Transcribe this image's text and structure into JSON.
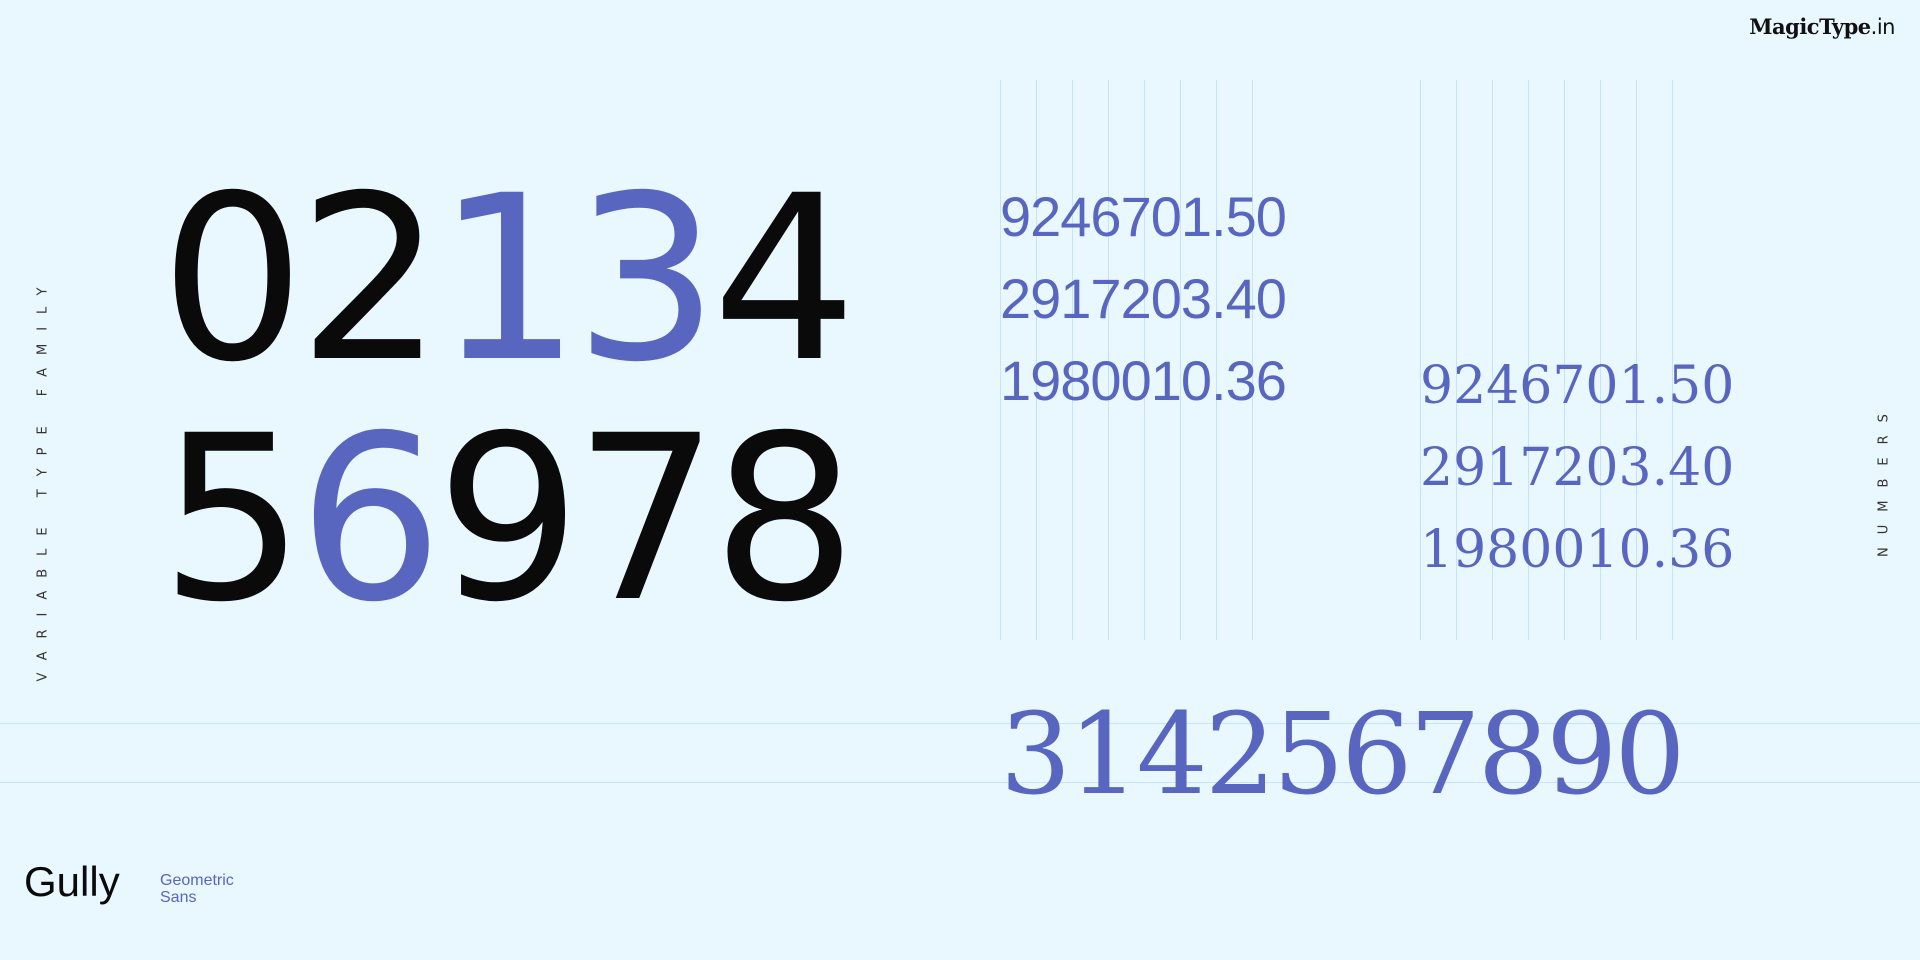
{
  "logo": {
    "main": "MagicType",
    "suffix": ".in"
  },
  "side_left": "VARIABLE TYPE FAMILY",
  "side_right": "NUMBERS",
  "big_digits": {
    "row1": [
      "0",
      "2",
      "1",
      "3",
      "4"
    ],
    "row2": [
      "5",
      "6",
      "9",
      "7",
      "8"
    ]
  },
  "tabular_numbers": [
    "9246701.50",
    "2917203.40",
    "1980010.36"
  ],
  "oldstyle_numbers": [
    "9246701.50",
    "2917203.40",
    "1980010.36"
  ],
  "bottom_number": "3142567890",
  "brand": {
    "name": "Gully",
    "sub1": "Geometric",
    "sub2": "Sans"
  },
  "colors": {
    "accent": "#5866c0",
    "background": "#e9f7fe",
    "text": "#0a0a0a"
  }
}
